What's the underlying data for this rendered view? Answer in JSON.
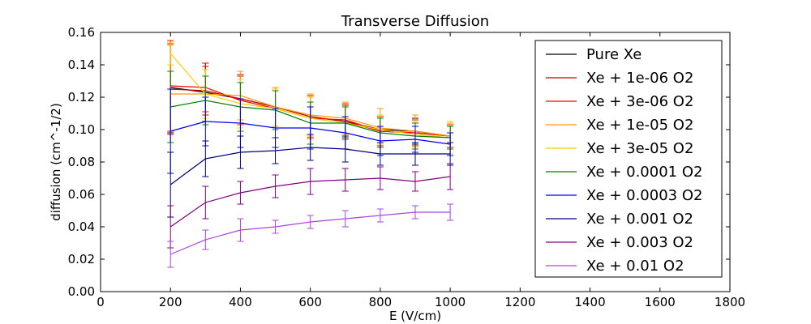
{
  "chart_data": {
    "type": "line",
    "title": "Transverse Diffusion",
    "xlabel": "E (V/cm)",
    "ylabel": "diffusion (cm^-1/2)",
    "xlim": [
      0,
      1800
    ],
    "ylim": [
      0,
      0.16
    ],
    "xticks": [
      0,
      200,
      400,
      600,
      800,
      1000,
      1200,
      1400,
      1600,
      1800
    ],
    "yticks": [
      0.0,
      0.02,
      0.04,
      0.06,
      0.08,
      0.1,
      0.12,
      0.14,
      0.16
    ],
    "xtick_labels": [
      "0",
      "200",
      "400",
      "600",
      "800",
      "1000",
      "1200",
      "1400",
      "1600",
      "1800"
    ],
    "ytick_labels": [
      "0.00",
      "0.02",
      "0.04",
      "0.06",
      "0.08",
      "0.10",
      "0.12",
      "0.14",
      "0.16"
    ],
    "grid": false,
    "legend_position": "top-right",
    "x": [
      200,
      300,
      400,
      500,
      600,
      700,
      800,
      900,
      1000
    ],
    "series": [
      {
        "name": "Pure Xe",
        "color": "#000000",
        "values": [
          0.126,
          0.123,
          0.119,
          0.114,
          0.108,
          0.105,
          0.1,
          0.099,
          0.096
        ],
        "errors": [
          0.028,
          0.018,
          0.015,
          0.012,
          0.013,
          0.01,
          0.009,
          0.008,
          0.007
        ]
      },
      {
        "name": "Xe + 1e-06 O2",
        "color": "#cc0000",
        "values": [
          0.125,
          0.124,
          0.119,
          0.114,
          0.108,
          0.105,
          0.099,
          0.098,
          0.096
        ],
        "errors": [
          0.028,
          0.015,
          0.015,
          0.012,
          0.013,
          0.01,
          0.009,
          0.008,
          0.007
        ]
      },
      {
        "name": "Xe + 3e-06 O2",
        "color": "#ff0000",
        "values": [
          0.127,
          0.126,
          0.118,
          0.113,
          0.107,
          0.106,
          0.099,
          0.098,
          0.096
        ],
        "errors": [
          0.028,
          0.015,
          0.015,
          0.012,
          0.013,
          0.01,
          0.009,
          0.008,
          0.007
        ]
      },
      {
        "name": "Xe + 1e-05 O2",
        "color": "#ff9900",
        "values": [
          0.122,
          0.122,
          0.121,
          0.114,
          0.109,
          0.107,
          0.101,
          0.099,
          0.096
        ],
        "errors": [
          0.03,
          0.015,
          0.015,
          0.012,
          0.013,
          0.01,
          0.012,
          0.01,
          0.008
        ]
      },
      {
        "name": "Xe + 3e-05 O2",
        "color": "#ffcc00",
        "values": [
          0.147,
          0.122,
          0.116,
          0.113,
          0.107,
          0.104,
          0.1,
          0.097,
          0.095
        ],
        "errors": [
          0.007,
          0.015,
          0.015,
          0.012,
          0.013,
          0.01,
          0.009,
          0.008,
          0.01
        ]
      },
      {
        "name": "Xe + 0.0001 O2",
        "color": "#008000",
        "values": [
          0.114,
          0.118,
          0.114,
          0.112,
          0.104,
          0.104,
          0.098,
          0.096,
          0.095
        ],
        "errors": [
          0.022,
          0.015,
          0.015,
          0.012,
          0.013,
          0.01,
          0.009,
          0.008,
          0.007
        ]
      },
      {
        "name": "Xe + 0.0003 O2",
        "color": "#0000ee",
        "values": [
          0.099,
          0.105,
          0.104,
          0.101,
          0.101,
          0.098,
          0.093,
          0.094,
          0.091
        ],
        "errors": [
          0.026,
          0.015,
          0.015,
          0.012,
          0.013,
          0.01,
          0.009,
          0.008,
          0.007
        ]
      },
      {
        "name": "Xe + 0.001 O2",
        "color": "#000080",
        "values": [
          0.066,
          0.082,
          0.086,
          0.087,
          0.089,
          0.088,
          0.085,
          0.085,
          0.085
        ],
        "errors": [
          0.02,
          0.011,
          0.01,
          0.008,
          0.008,
          0.008,
          0.007,
          0.007,
          0.007
        ]
      },
      {
        "name": "Xe + 0.003 O2",
        "color": "#800080",
        "values": [
          0.04,
          0.055,
          0.061,
          0.065,
          0.068,
          0.069,
          0.07,
          0.068,
          0.071
        ],
        "errors": [
          0.013,
          0.01,
          0.007,
          0.007,
          0.008,
          0.007,
          0.007,
          0.006,
          0.008
        ]
      },
      {
        "name": "Xe + 0.01 O2",
        "color": "#aa44dd",
        "values": [
          0.023,
          0.032,
          0.038,
          0.04,
          0.043,
          0.045,
          0.047,
          0.049,
          0.049
        ],
        "errors": [
          0.008,
          0.006,
          0.007,
          0.004,
          0.004,
          0.005,
          0.004,
          0.004,
          0.005
        ]
      }
    ]
  }
}
